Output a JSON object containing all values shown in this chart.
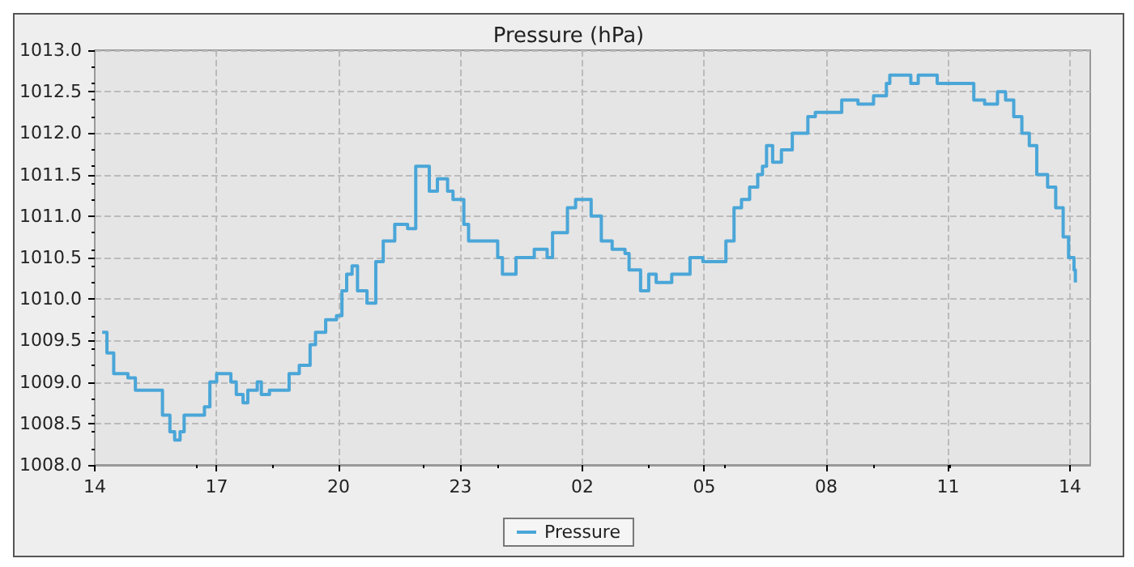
{
  "chart_data": {
    "type": "step",
    "title": "Pressure (hPa)",
    "x": [
      "--01-01T14:11",
      "--01-01T14:18",
      "--01-01T14:28",
      "--01-01T14:49",
      "--01-01T15:00",
      "--01-01T15:28",
      "--01-01T15:40",
      "--01-01T15:51",
      "--01-01T15:58",
      "--01-01T16:06",
      "--01-01T16:12",
      "--01-01T16:26",
      "--01-01T16:42",
      "--01-01T16:50",
      "--01-01T17:00",
      "--01-01T17:12",
      "--01-01T17:21",
      "--01-01T17:29",
      "--01-01T17:39",
      "--01-01T17:46",
      "--01-01T18:00",
      "--01-01T18:06",
      "--01-01T18:18",
      "--01-01T18:36",
      "--01-01T18:47",
      "--01-01T19:02",
      "--01-01T19:18",
      "--01-01T19:26",
      "--01-01T19:41",
      "--01-01T19:57",
      "--01-01T20:05",
      "--01-01T20:12",
      "--01-01T20:20",
      "--01-01T20:28",
      "--01-01T20:42",
      "--01-01T20:55",
      "--01-01T21:06",
      "--01-01T21:23",
      "--01-01T21:42",
      "--01-01T21:54",
      "--01-01T22:09",
      "--01-01T22:14",
      "--01-01T22:26",
      "--01-01T22:41",
      "--01-01T22:49",
      "--01-01T23:00",
      "--01-01T23:05",
      "--01-01T23:12",
      "--01-01T23:43",
      "--01-01T23:55",
      "--01-02T00:02",
      "--01-02T00:22",
      "--01-02T00:49",
      "--01-02T01:08",
      "--01-02T01:16",
      "--01-02T01:38",
      "--01-02T01:50",
      "--01-02T02:02",
      "--01-02T02:13",
      "--01-02T02:28",
      "--01-02T02:44",
      "--01-02T03:03",
      "--01-02T03:09",
      "--01-02T03:26",
      "--01-02T03:38",
      "--01-02T03:49",
      "--01-02T04:12",
      "--01-02T04:39",
      "--01-02T04:58",
      "--01-02T05:24",
      "--01-02T05:32",
      "--01-02T05:44",
      "--01-02T05:55",
      "--01-02T06:07",
      "--01-02T06:19",
      "--01-02T06:26",
      "--01-02T06:32",
      "--01-02T06:41",
      "--01-02T06:54",
      "--01-02T07:10",
      "--01-02T07:33",
      "--01-02T07:44",
      "--01-02T08:00",
      "--01-02T08:23",
      "--01-02T08:47",
      "--01-02T09:10",
      "--01-02T09:29",
      "--01-02T09:34",
      "--01-02T10:05",
      "--01-02T10:16",
      "--01-02T10:44",
      "--01-02T11:23",
      "--01-02T11:38",
      "--01-02T11:54",
      "--01-02T12:13",
      "--01-02T12:25",
      "--01-02T12:37",
      "--01-02T12:49",
      "--01-02T13:00",
      "--01-02T13:11",
      "--01-02T13:27",
      "--01-02T13:39",
      "--01-02T13:50",
      "--01-02T13:58",
      "--01-02T14:06",
      "--01-02T14:08"
    ],
    "series": [
      {
        "name": "Pressure",
        "color": "#4aa6d8",
        "values": [
          1009.6,
          1009.35,
          1009.1,
          1009.05,
          1008.9,
          1008.9,
          1008.6,
          1008.4,
          1008.3,
          1008.4,
          1008.6,
          1008.6,
          1008.7,
          1009.0,
          1009.1,
          1009.1,
          1009.0,
          1008.85,
          1008.75,
          1008.9,
          1009.0,
          1008.85,
          1008.9,
          1008.9,
          1009.1,
          1009.2,
          1009.45,
          1009.6,
          1009.75,
          1009.8,
          1010.1,
          1010.3,
          1010.4,
          1010.1,
          1009.95,
          1010.45,
          1010.7,
          1010.9,
          1010.85,
          1011.6,
          1011.6,
          1011.3,
          1011.45,
          1011.3,
          1011.2,
          1011.2,
          1010.9,
          1010.7,
          1010.7,
          1010.5,
          1010.3,
          1010.5,
          1010.6,
          1010.5,
          1010.8,
          1011.1,
          1011.2,
          1011.2,
          1011.0,
          1010.7,
          1010.6,
          1010.55,
          1010.35,
          1010.1,
          1010.3,
          1010.2,
          1010.3,
          1010.5,
          1010.45,
          1010.45,
          1010.7,
          1011.1,
          1011.2,
          1011.35,
          1011.5,
          1011.6,
          1011.85,
          1011.65,
          1011.8,
          1012.0,
          1012.2,
          1012.25,
          1012.25,
          1012.4,
          1012.35,
          1012.45,
          1012.6,
          1012.7,
          1012.6,
          1012.7,
          1012.6,
          1012.6,
          1012.4,
          1012.35,
          1012.5,
          1012.4,
          1012.2,
          1012.0,
          1011.85,
          1011.5,
          1011.35,
          1011.1,
          1010.75,
          1010.5,
          1010.35,
          1010.2
        ]
      }
    ],
    "xlim": [
      "--01-01T14:00",
      "--01-02T14:30"
    ],
    "xticks": [
      {
        "value": "--01-01T14:00",
        "label": "14"
      },
      {
        "value": "--01-01T17:00",
        "label": "17"
      },
      {
        "value": "--01-01T20:00",
        "label": "20"
      },
      {
        "value": "--01-01T23:00",
        "label": "23"
      },
      {
        "value": "--01-02T02:00",
        "label": "02"
      },
      {
        "value": "--01-02T05:00",
        "label": "05"
      },
      {
        "value": "--01-02T08:00",
        "label": "08"
      },
      {
        "value": "--01-02T11:00",
        "label": "11"
      },
      {
        "value": "--01-02T14:00",
        "label": "14"
      }
    ],
    "ylim": [
      1008.0,
      1013.0
    ],
    "yticks": [
      {
        "value": 1008.0,
        "label": "1008.0"
      },
      {
        "value": 1008.5,
        "label": "1008.5"
      },
      {
        "value": 1009.0,
        "label": "1009.0"
      },
      {
        "value": 1009.5,
        "label": "1009.5"
      },
      {
        "value": 1010.0,
        "label": "1010.0"
      },
      {
        "value": 1010.5,
        "label": "1010.5"
      },
      {
        "value": 1011.0,
        "label": "1011.0"
      },
      {
        "value": 1011.5,
        "label": "1011.5"
      },
      {
        "value": 1012.0,
        "label": "1012.0"
      },
      {
        "value": 1012.5,
        "label": "1012.5"
      },
      {
        "value": 1013.0,
        "label": "1013.0"
      }
    ],
    "grid": true,
    "legend": "bottom",
    "marker": "none",
    "line_style": "solid"
  }
}
